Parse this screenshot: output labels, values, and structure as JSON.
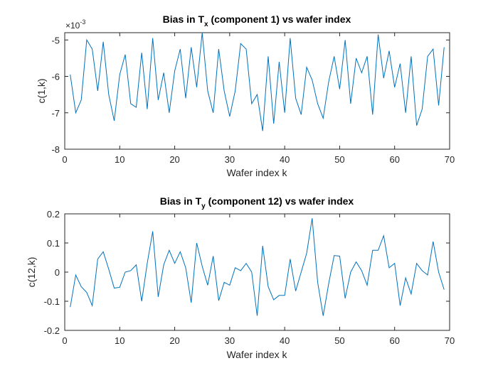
{
  "chart_data": [
    {
      "type": "line",
      "title_main": "Bias in T",
      "title_sub": "x",
      "title_rest": " (component 1) vs wafer index",
      "xlabel": "Wafer index k",
      "ylabel": "c(1,k)",
      "xlim": [
        0,
        70
      ],
      "ylim": [
        -0.008,
        -0.0048
      ],
      "xticks": [
        0,
        10,
        20,
        30,
        40,
        50,
        60,
        70
      ],
      "xtick_labels": [
        "0",
        "10",
        "20",
        "30",
        "40",
        "50",
        "60",
        "70"
      ],
      "yticks": [
        -0.008,
        -0.007,
        -0.006,
        -0.005
      ],
      "ytick_labels": [
        "-8",
        "-7",
        "-6",
        "-5"
      ],
      "exponent_base": "×10",
      "exponent_power": "-3",
      "grid": false,
      "color": "#0072BD",
      "x": [
        1,
        2,
        3,
        4,
        5,
        6,
        7,
        8,
        9,
        10,
        11,
        12,
        13,
        14,
        15,
        16,
        17,
        18,
        19,
        20,
        21,
        22,
        23,
        24,
        25,
        26,
        27,
        28,
        29,
        30,
        31,
        32,
        33,
        34,
        35,
        36,
        37,
        38,
        39,
        40,
        41,
        42,
        43,
        44,
        45,
        46,
        47,
        48,
        49,
        50,
        51,
        52,
        53,
        54,
        55,
        56,
        57,
        58,
        59,
        60,
        61,
        62,
        63,
        64,
        65,
        66,
        67,
        68,
        69
      ],
      "y": [
        -0.00595,
        -0.007,
        -0.00665,
        -0.005,
        -0.00525,
        -0.0064,
        -0.00505,
        -0.0065,
        -0.00722,
        -0.00595,
        -0.0054,
        -0.00675,
        -0.00685,
        -0.00535,
        -0.0069,
        -0.00495,
        -0.00665,
        -0.0059,
        -0.007,
        -0.00585,
        -0.00525,
        -0.0066,
        -0.0052,
        -0.0063,
        -0.0048,
        -0.0064,
        -0.007,
        -0.00525,
        -0.0064,
        -0.0071,
        -0.0064,
        -0.0051,
        -0.00525,
        -0.00675,
        -0.0065,
        -0.0075,
        -0.00545,
        -0.0073,
        -0.0056,
        -0.007,
        -0.00495,
        -0.0066,
        -0.00705,
        -0.00575,
        -0.0061,
        -0.00675,
        -0.00715,
        -0.00615,
        -0.00545,
        -0.00635,
        -0.005,
        -0.00675,
        -0.0055,
        -0.0059,
        -0.00545,
        -0.00705,
        -0.00485,
        -0.00605,
        -0.0053,
        -0.0063,
        -0.00565,
        -0.007,
        -0.00545,
        -0.00735,
        -0.0069,
        -0.00545,
        -0.00525,
        -0.0068,
        -0.0052
      ]
    },
    {
      "type": "line",
      "title_main": "Bias in T",
      "title_sub": "y",
      "title_rest": " (component 12) vs wafer index",
      "xlabel": "Wafer index k",
      "ylabel": "c(12,k)",
      "xlim": [
        0,
        70
      ],
      "ylim": [
        -0.2,
        0.2
      ],
      "xticks": [
        0,
        10,
        20,
        30,
        40,
        50,
        60,
        70
      ],
      "xtick_labels": [
        "0",
        "10",
        "20",
        "30",
        "40",
        "50",
        "60",
        "70"
      ],
      "yticks": [
        -0.2,
        -0.1,
        0,
        0.1,
        0.2
      ],
      "ytick_labels": [
        "-0.2",
        "-0.1",
        "0",
        "0.1",
        "0.2"
      ],
      "grid": false,
      "color": "#0072BD",
      "x": [
        1,
        2,
        3,
        4,
        5,
        6,
        7,
        8,
        9,
        10,
        11,
        12,
        13,
        14,
        15,
        16,
        17,
        18,
        19,
        20,
        21,
        22,
        23,
        24,
        25,
        26,
        27,
        28,
        29,
        30,
        31,
        32,
        33,
        34,
        35,
        36,
        37,
        38,
        39,
        40,
        41,
        42,
        43,
        44,
        45,
        46,
        47,
        48,
        49,
        50,
        51,
        52,
        53,
        54,
        55,
        56,
        57,
        58,
        59,
        60,
        61,
        62,
        63,
        64,
        65,
        66,
        67,
        68,
        69
      ],
      "y": [
        -0.12,
        -0.01,
        -0.05,
        -0.07,
        -0.115,
        0.045,
        0.07,
        0.01,
        -0.055,
        -0.052,
        0.0,
        0.005,
        0.025,
        -0.1,
        0.03,
        0.14,
        -0.085,
        0.025,
        0.075,
        0.03,
        0.07,
        0.015,
        -0.105,
        0.1,
        0.02,
        -0.045,
        0.055,
        -0.098,
        -0.035,
        -0.045,
        0.015,
        0.005,
        0.03,
        0.0,
        -0.15,
        0.09,
        -0.05,
        -0.095,
        -0.08,
        -0.08,
        0.045,
        -0.065,
        0.0,
        0.065,
        0.185,
        -0.035,
        -0.15,
        -0.04,
        0.057,
        0.055,
        -0.09,
        0.0,
        0.035,
        0.005,
        -0.045,
        0.075,
        0.075,
        0.125,
        0.015,
        0.03,
        -0.115,
        -0.02,
        -0.075,
        0.03,
        0.005,
        -0.01,
        0.105,
        0.0,
        -0.06
      ]
    }
  ]
}
